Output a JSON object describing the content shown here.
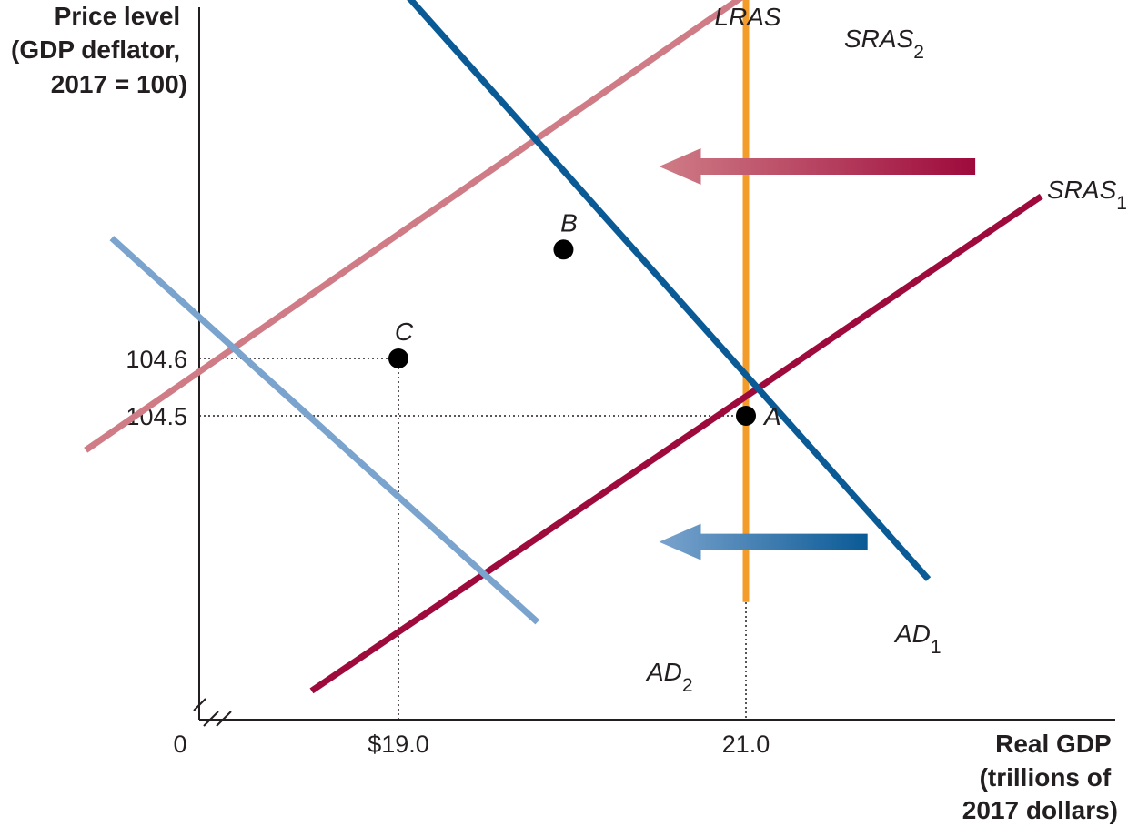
{
  "chart_data": {
    "type": "line",
    "y_axis_title": [
      "Price level",
      "(GDP deflator,",
      "2017 = 100)"
    ],
    "x_axis_title": [
      "Real GDP",
      "(trillions of",
      "2017 dollars)"
    ],
    "origin_label": "0",
    "x_ticks": [
      {
        "value": 19.0,
        "label": "$19.0"
      },
      {
        "value": 21.0,
        "label": "21.0"
      }
    ],
    "y_ticks": [
      {
        "value": 104.6,
        "label": "104.6"
      },
      {
        "value": 104.5,
        "label": "104.5"
      }
    ],
    "series": [
      {
        "key": "lras",
        "name": "LRAS",
        "sub": "",
        "color": "#f39c2a",
        "points": [
          [
            21.0,
            104.175
          ],
          [
            21.0,
            105.39
          ]
        ]
      },
      {
        "key": "sras1",
        "name": "SRAS",
        "sub": "1",
        "color": "#9e0a3c",
        "points": [
          [
            18.5,
            104.02
          ],
          [
            22.7,
            104.883
          ]
        ]
      },
      {
        "key": "sras2",
        "name": "SRAS",
        "sub": "2",
        "color": "#cf7c86",
        "points": [
          [
            17.2,
            104.44
          ],
          [
            21.5,
            105.34
          ]
        ]
      },
      {
        "key": "ad1",
        "name": "AD",
        "sub": "1",
        "color": "#0a5a96",
        "points": [
          [
            19.0,
            105.25
          ],
          [
            22.05,
            104.215
          ]
        ]
      },
      {
        "key": "ad2",
        "name": "AD",
        "sub": "2",
        "color": "#7aa3cd",
        "points": [
          [
            17.35,
            104.81
          ],
          [
            19.8,
            104.14
          ]
        ]
      }
    ],
    "points": [
      {
        "label": "A",
        "x": 21.0,
        "y": 104.5
      },
      {
        "label": "B",
        "x": 19.95,
        "y": 104.79
      },
      {
        "label": "C",
        "x": 19.0,
        "y": 104.6
      }
    ],
    "shift_arrows": [
      {
        "name": "SRAS shift",
        "from": [
          22.32,
          104.935
        ],
        "to": [
          20.5,
          104.935
        ],
        "colors": [
          "#cf7c86",
          "#9e0a3c"
        ]
      },
      {
        "name": "AD shift",
        "from": [
          21.7,
          104.28
        ],
        "to": [
          20.5,
          104.28
        ],
        "colors": [
          "#7aa3cd",
          "#0a5a96"
        ]
      }
    ],
    "grid": false
  }
}
